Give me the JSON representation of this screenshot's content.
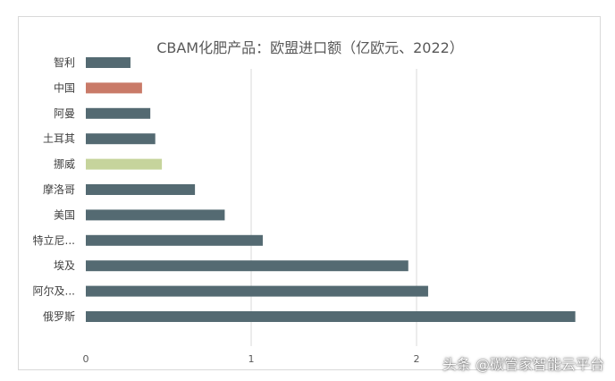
{
  "chart_data": {
    "type": "bar",
    "orientation": "horizontal",
    "title": "CBAM化肥产品：欧盟进口额（亿欧元、2022）",
    "categories": [
      "智利",
      "中国",
      "阿曼",
      "土耳其",
      "挪威",
      "摩洛哥",
      "美国",
      "特立尼...",
      "埃及",
      "阿尔及...",
      "俄罗斯"
    ],
    "values": [
      0.27,
      0.34,
      0.39,
      0.42,
      0.46,
      0.66,
      0.84,
      1.07,
      1.95,
      2.07,
      2.96
    ],
    "bar_colors": [
      "#546a72",
      "#c97a68",
      "#546a72",
      "#546a72",
      "#c6d49c",
      "#546a72",
      "#546a72",
      "#546a72",
      "#546a72",
      "#546a72",
      "#546a72"
    ],
    "xlim": [
      0,
      3
    ],
    "xticks": [
      "0",
      "1",
      "2"
    ],
    "xtick_values": [
      0,
      1,
      2
    ],
    "grid": true,
    "xlabel": "",
    "ylabel": ""
  },
  "watermark": "头条 @碳管家智能云平台"
}
